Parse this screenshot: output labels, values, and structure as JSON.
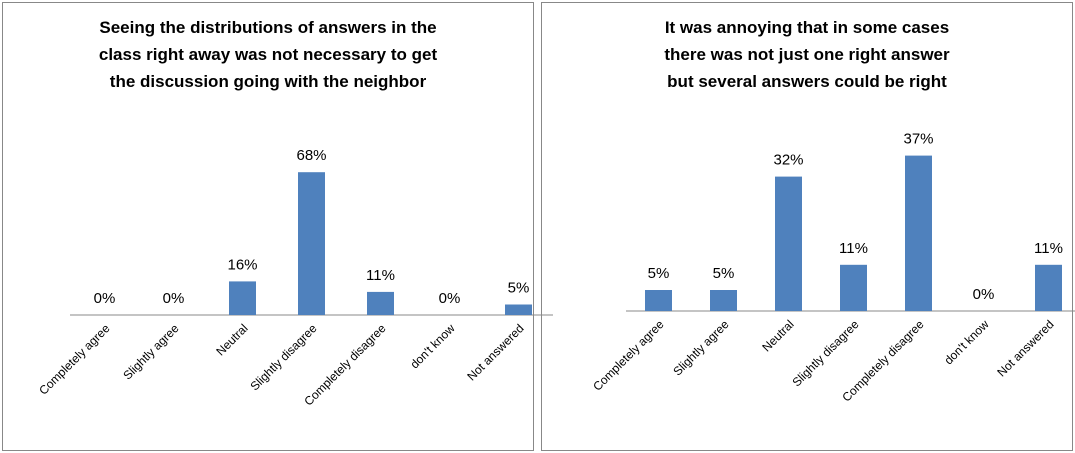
{
  "chart_data": [
    {
      "type": "bar",
      "title": [
        "Seeing the distributions of answers in the",
        "class right away was not necessary to get",
        "the discussion going with the neighbor"
      ],
      "categories": [
        "Completely agree",
        "Slightly agree",
        "Neutral",
        "Slightly disagree",
        "Completely disagree",
        "don't know",
        "Not answered"
      ],
      "values": [
        0,
        0,
        16,
        68,
        11,
        0,
        5
      ],
      "value_labels": [
        "0%",
        "0%",
        "16%",
        "68%",
        "11%",
        "0%",
        "5%"
      ],
      "color": "#4f81bd",
      "ylim": [
        0,
        80
      ]
    },
    {
      "type": "bar",
      "title": [
        "It was annoying that in some cases",
        "there was not just one right answer",
        "but several answers could be right"
      ],
      "categories": [
        "Completely agree",
        "Slightly agree",
        "Neutral",
        "Slightly disagree",
        "Completely disagree",
        "don't know",
        "Not answered"
      ],
      "values": [
        5,
        5,
        32,
        11,
        37,
        0,
        11
      ],
      "value_labels": [
        "5%",
        "5%",
        "32%",
        "11%",
        "37%",
        "0%",
        "11%"
      ],
      "color": "#4f81bd",
      "ylim": [
        0,
        40
      ]
    }
  ]
}
